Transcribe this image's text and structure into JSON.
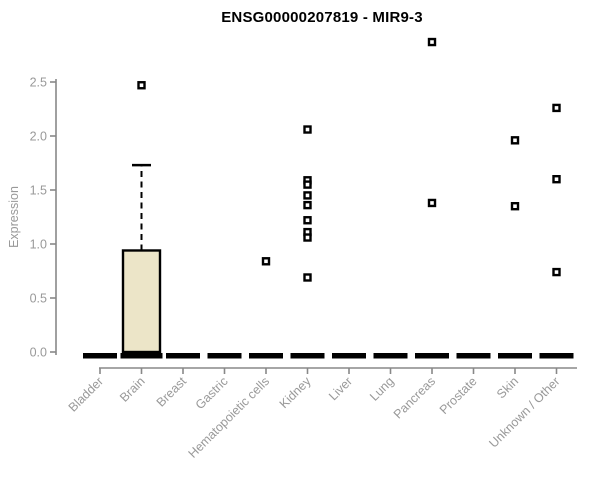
{
  "header": {
    "title": "ENSG00000207819 - MIR9-3"
  },
  "chart_data": {
    "type": "boxplot",
    "title": "ENSG00000207819 - MIR9-3",
    "xlabel": "",
    "ylabel": "Expression",
    "ylim": [
      0.0,
      2.5
    ],
    "yticks": [
      0.0,
      0.5,
      1.0,
      1.5,
      2.0,
      2.5
    ],
    "grid": false,
    "legend": null,
    "categories": [
      "Bladder",
      "Brain",
      "Breast",
      "Gastric",
      "Hematopoietic cells",
      "Kidney",
      "Liver",
      "Lung",
      "Pancreas",
      "Prostate",
      "Skin",
      "Unknown / Other"
    ],
    "series": [
      {
        "category": "Bladder",
        "median": 0,
        "q1": 0,
        "q3": 0,
        "whisker_low": 0,
        "whisker_high": 0,
        "outliers": []
      },
      {
        "category": "Brain",
        "median": 0,
        "q1": 0,
        "q3": 0.94,
        "whisker_low": 0,
        "whisker_high": 1.73,
        "outliers": [
          2.47
        ]
      },
      {
        "category": "Breast",
        "median": 0,
        "q1": 0,
        "q3": 0,
        "whisker_low": 0,
        "whisker_high": 0,
        "outliers": []
      },
      {
        "category": "Gastric",
        "median": 0,
        "q1": 0,
        "q3": 0,
        "whisker_low": 0,
        "whisker_high": 0,
        "outliers": []
      },
      {
        "category": "Hematopoietic cells",
        "median": 0,
        "q1": 0,
        "q3": 0,
        "whisker_low": 0,
        "whisker_high": 0,
        "outliers": [
          0.84
        ]
      },
      {
        "category": "Kidney",
        "median": 0,
        "q1": 0,
        "q3": 0,
        "whisker_low": 0,
        "whisker_high": 0,
        "outliers": [
          2.06,
          1.59,
          1.55,
          1.45,
          1.36,
          1.22,
          1.11,
          1.06,
          0.69
        ]
      },
      {
        "category": "Liver",
        "median": 0,
        "q1": 0,
        "q3": 0,
        "whisker_low": 0,
        "whisker_high": 0,
        "outliers": []
      },
      {
        "category": "Lung",
        "median": 0,
        "q1": 0,
        "q3": 0,
        "whisker_low": 0,
        "whisker_high": 0,
        "outliers": []
      },
      {
        "category": "Pancreas",
        "median": 0,
        "q1": 0,
        "q3": 0,
        "whisker_low": 0,
        "whisker_high": 0,
        "outliers": [
          2.87,
          1.38
        ]
      },
      {
        "category": "Prostate",
        "median": 0,
        "q1": 0,
        "q3": 0,
        "whisker_low": 0,
        "whisker_high": 0,
        "outliers": []
      },
      {
        "category": "Skin",
        "median": 0,
        "q1": 0,
        "q3": 0,
        "whisker_low": 0,
        "whisker_high": 0,
        "outliers": [
          1.96,
          1.35
        ]
      },
      {
        "category": "Unknown / Other",
        "median": 0,
        "q1": 0,
        "q3": 0,
        "whisker_low": 0,
        "whisker_high": 0,
        "outliers": [
          2.26,
          1.6,
          0.74
        ]
      }
    ],
    "colors": {
      "box_fill": "#ece5c8",
      "box_stroke": "#000000",
      "median": "#000000",
      "outlier": "#000000",
      "axis": "#888888",
      "tick_text": "#999999",
      "title_text": "#000000",
      "background": "#ffffff"
    }
  }
}
